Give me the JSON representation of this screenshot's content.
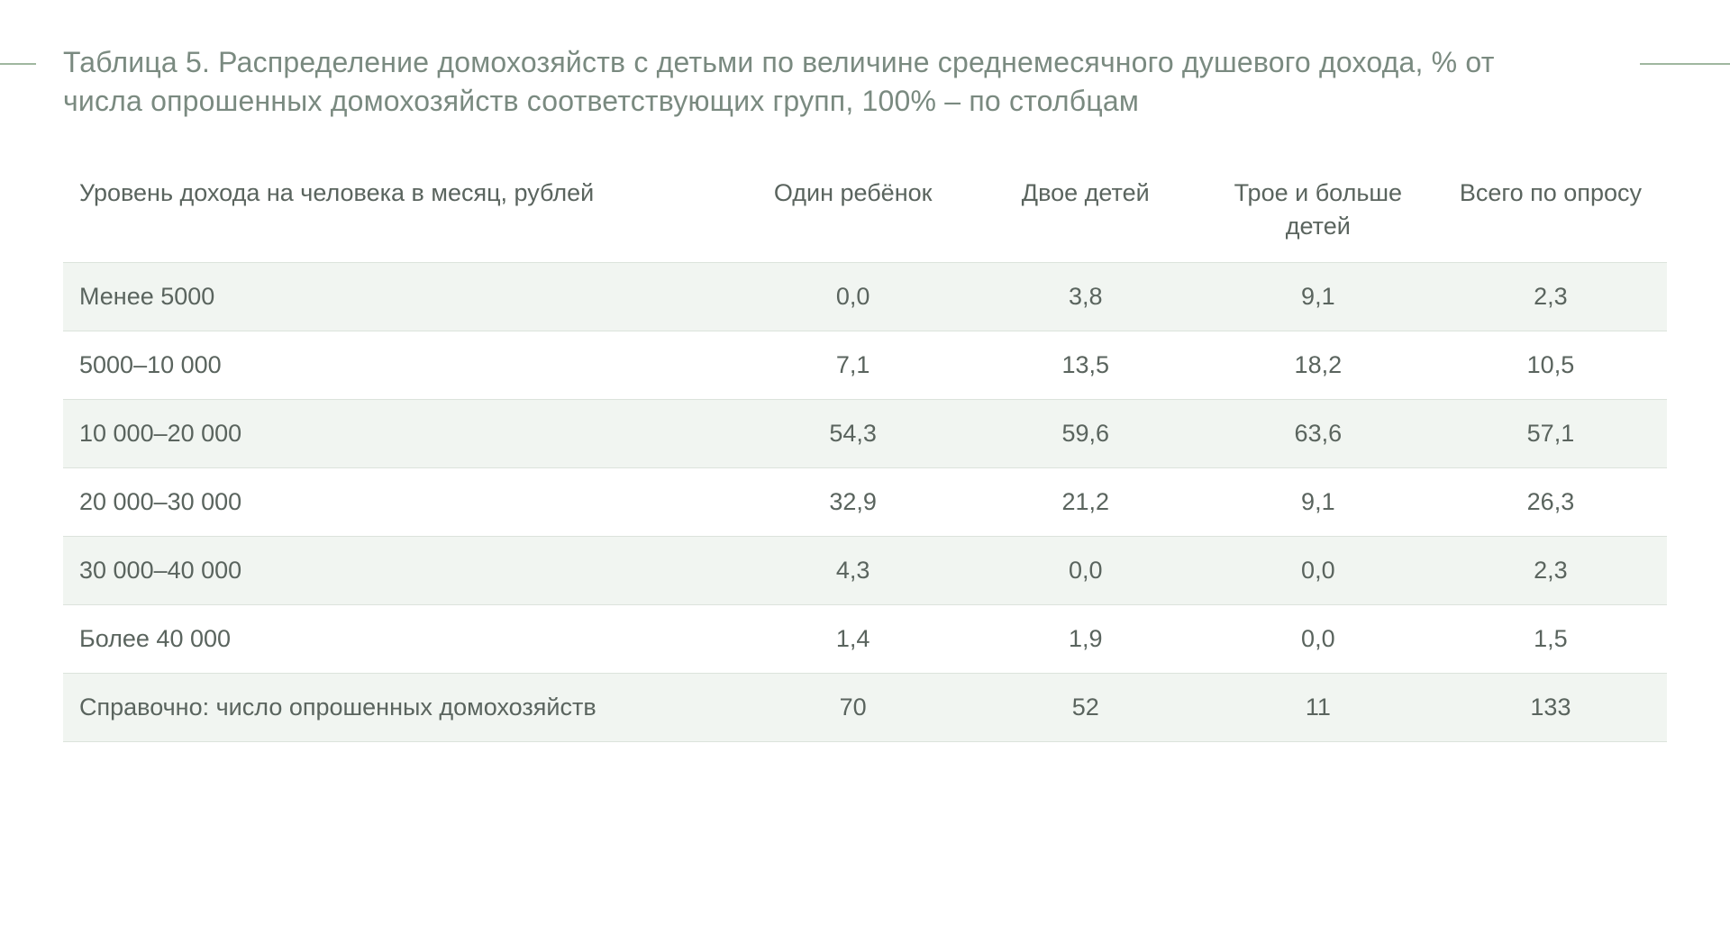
{
  "title": "Таблица 5. Распределение домохозяйств с детьми по величине среднемесячного душевого дохода, % от числа опрошенных домохозяйств соответствующих групп, 100% – по столбцам",
  "table": {
    "type": "table",
    "background_color": "#ffffff",
    "stripe_color": "#f1f5f1",
    "border_color": "#dce3dc",
    "text_color": "#5a645e",
    "title_color": "#7a8a80",
    "rule_color": "#9fb79f",
    "title_fontsize": 32,
    "cell_fontsize": 27,
    "columns": [
      {
        "key": "label",
        "header": "Уровень дохода на человека в месяц, рублей",
        "align": "left"
      },
      {
        "key": "c1",
        "header": "Один ребёнок",
        "align": "center"
      },
      {
        "key": "c2",
        "header": "Двое детей",
        "align": "center"
      },
      {
        "key": "c3",
        "header": "Трое и больше детей",
        "align": "center"
      },
      {
        "key": "c4",
        "header": "Всего по опросу",
        "align": "center"
      }
    ],
    "rows": [
      {
        "label": "Менее 5000",
        "c1": "0,0",
        "c2": "3,8",
        "c3": "9,1",
        "c4": "2,3"
      },
      {
        "label": "5000–10 000",
        "c1": "7,1",
        "c2": "13,5",
        "c3": "18,2",
        "c4": "10,5"
      },
      {
        "label": "10 000–20 000",
        "c1": "54,3",
        "c2": "59,6",
        "c3": "63,6",
        "c4": "57,1"
      },
      {
        "label": "20 000–30 000",
        "c1": "32,9",
        "c2": "21,2",
        "c3": "9,1",
        "c4": "26,3"
      },
      {
        "label": "30 000–40 000",
        "c1": "4,3",
        "c2": "0,0",
        "c3": "0,0",
        "c4": "2,3"
      },
      {
        "label": "Более 40 000",
        "c1": "1,4",
        "c2": "1,9",
        "c3": "0,0",
        "c4": "1,5"
      },
      {
        "label": "Справочно: число опрошенных домохозяйств",
        "c1": "70",
        "c2": "52",
        "c3": "11",
        "c4": "133"
      }
    ]
  }
}
